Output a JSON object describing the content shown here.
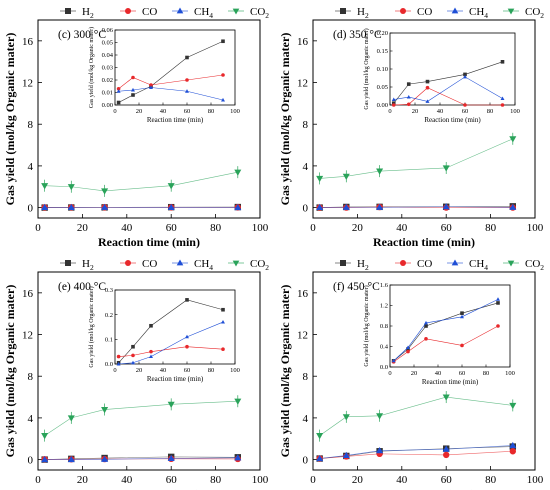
{
  "legend": {
    "entries": [
      {
        "key": "H2",
        "base": "H",
        "sub": "2",
        "color": "#333333",
        "marker": "square"
      },
      {
        "key": "CO",
        "base": "CO",
        "sub": "",
        "color": "#e8282b",
        "marker": "circle"
      },
      {
        "key": "CH4",
        "base": "CH",
        "sub": "4",
        "color": "#1f4fd6",
        "marker": "triangle-up"
      },
      {
        "key": "CO2",
        "base": "CO",
        "sub": "2",
        "color": "#2aa35a",
        "marker": "triangle-down"
      }
    ]
  },
  "chart_data": [
    {
      "type": "scatter",
      "panel_label": "(c) 300 °C",
      "xlabel": "Reaction time (min)",
      "ylabel": "Gas yield (mol/kg Organic mater)",
      "xlim": [
        0,
        100
      ],
      "ylim": [
        -1,
        18
      ],
      "xticks": [
        "0",
        "20",
        "40",
        "60",
        "80",
        "100"
      ],
      "yticks": [
        "0",
        "4",
        "8",
        "12",
        "16"
      ],
      "x": [
        3,
        15,
        30,
        60,
        90
      ],
      "series": [
        {
          "name": "H2",
          "values": [
            0.0,
            0.01,
            0.02,
            0.04,
            0.05
          ]
        },
        {
          "name": "CO",
          "values": [
            0.01,
            0.02,
            0.02,
            0.02,
            0.02
          ]
        },
        {
          "name": "CH4",
          "values": [
            0.01,
            0.01,
            0.02,
            0.01,
            0.0
          ]
        },
        {
          "name": "CO2",
          "values": [
            2.1,
            2.0,
            1.6,
            2.1,
            3.4
          ]
        }
      ],
      "inset": {
        "xlabel": "Reaction time (min)",
        "ylabel": "Gas yield (mol/kg Organic mater)",
        "xlim": [
          0,
          100
        ],
        "ylim": [
          0,
          0.06
        ],
        "xticks": [
          "0",
          "20",
          "40",
          "60",
          "80",
          "100"
        ],
        "yticks": [
          "0.00",
          "0.01",
          "0.02",
          "0.03",
          "0.04",
          "0.05",
          "0.06"
        ],
        "series": [
          {
            "name": "H2",
            "values": [
              0.002,
              0.008,
              0.015,
              0.038,
              0.051
            ]
          },
          {
            "name": "CO",
            "values": [
              0.013,
              0.022,
              0.016,
              0.02,
              0.024
            ]
          },
          {
            "name": "CH4",
            "values": [
              0.011,
              0.012,
              0.014,
              0.011,
              0.004
            ]
          }
        ]
      }
    },
    {
      "type": "scatter",
      "panel_label": "(d) 350 °C",
      "xlabel": "Reaction time (min)",
      "ylabel": "Gas yield (mol/kg Organic mater)",
      "xlim": [
        0,
        100
      ],
      "ylim": [
        -1,
        18
      ],
      "xticks": [
        "0",
        "20",
        "40",
        "60",
        "80",
        "100"
      ],
      "yticks": [
        "0",
        "4",
        "8",
        "12",
        "16"
      ],
      "x": [
        3,
        15,
        30,
        60,
        90
      ],
      "series": [
        {
          "name": "H2",
          "values": [
            0.0,
            0.06,
            0.07,
            0.08,
            0.12
          ]
        },
        {
          "name": "CO",
          "values": [
            0.0,
            0.0,
            0.05,
            0.0,
            0.0
          ]
        },
        {
          "name": "CH4",
          "values": [
            0.01,
            0.02,
            0.02,
            0.08,
            0.02
          ]
        },
        {
          "name": "CO2",
          "values": [
            2.8,
            3.0,
            3.5,
            3.8,
            6.6
          ]
        }
      ],
      "inset": {
        "xlabel": "Reaction time (min)",
        "ylabel": "Gas yield (mol/kg Organic mater)",
        "xlim": [
          0,
          100
        ],
        "ylim": [
          0,
          0.2
        ],
        "xticks": [
          "0",
          "20",
          "40",
          "60",
          "80",
          "100"
        ],
        "yticks": [
          "0.00",
          "0.05",
          "0.10",
          "0.15",
          "0.20"
        ],
        "series": [
          {
            "name": "H2",
            "values": [
              0.005,
              0.058,
              0.065,
              0.085,
              0.12
            ]
          },
          {
            "name": "CO",
            "values": [
              0.0,
              0.002,
              0.048,
              0.0,
              0.0
            ]
          },
          {
            "name": "CH4",
            "values": [
              0.015,
              0.022,
              0.01,
              0.078,
              0.018
            ]
          }
        ]
      }
    },
    {
      "type": "scatter",
      "panel_label": "(e) 400 °C",
      "xlabel": "Reaction time (min)",
      "ylabel": "Gas yield (mol/kg Organic mater)",
      "xlim": [
        0,
        100
      ],
      "ylim": [
        -1,
        18
      ],
      "xticks": [
        "0",
        "20",
        "40",
        "60",
        "80",
        "100"
      ],
      "yticks": [
        "0",
        "4",
        "8",
        "12",
        "16"
      ],
      "x": [
        3,
        15,
        30,
        60,
        90
      ],
      "series": [
        {
          "name": "H2",
          "values": [
            0.0,
            0.07,
            0.15,
            0.26,
            0.22
          ]
        },
        {
          "name": "CO",
          "values": [
            0.03,
            0.03,
            0.05,
            0.07,
            0.06
          ]
        },
        {
          "name": "CH4",
          "values": [
            0.0,
            0.0,
            0.03,
            0.11,
            0.17
          ]
        },
        {
          "name": "CO2",
          "values": [
            2.3,
            4.0,
            4.8,
            5.3,
            5.6
          ]
        }
      ],
      "inset": {
        "xlabel": "Reaction time (min)",
        "ylabel": "Gas yield (mol/kg Organic mater)",
        "xlim": [
          0,
          100
        ],
        "ylim": [
          0,
          0.3
        ],
        "xticks": [
          "0",
          "20",
          "40",
          "60",
          "80",
          "100"
        ],
        "yticks": [
          "0.0",
          "0.1",
          "0.2",
          "0.3"
        ],
        "series": [
          {
            "name": "H2",
            "values": [
              0.005,
              0.07,
              0.155,
              0.26,
              0.22
            ]
          },
          {
            "name": "CO",
            "values": [
              0.03,
              0.035,
              0.05,
              0.07,
              0.06
            ]
          },
          {
            "name": "CH4",
            "values": [
              0.0,
              0.005,
              0.03,
              0.11,
              0.17
            ]
          }
        ]
      }
    },
    {
      "type": "scatter",
      "panel_label": "(f) 450 °C",
      "xlabel": "Reaction time (min)",
      "ylabel": "Gas yield (mol/kg Organic mater)",
      "xlim": [
        0,
        100
      ],
      "ylim": [
        -1,
        18
      ],
      "xticks": [
        "0",
        "20",
        "40",
        "60",
        "80",
        "100"
      ],
      "yticks": [
        "0",
        "4",
        "8",
        "12",
        "16"
      ],
      "x": [
        3,
        15,
        30,
        60,
        90
      ],
      "series": [
        {
          "name": "H2",
          "values": [
            0.1,
            0.35,
            0.8,
            1.05,
            1.25
          ]
        },
        {
          "name": "CO",
          "values": [
            0.1,
            0.3,
            0.55,
            0.45,
            0.8
          ]
        },
        {
          "name": "CH4",
          "values": [
            0.1,
            0.4,
            0.85,
            1.0,
            1.35
          ]
        },
        {
          "name": "CO2",
          "values": [
            2.3,
            4.1,
            4.2,
            6.0,
            5.2
          ]
        }
      ],
      "inset": {
        "xlabel": "Reaction time (min)",
        "ylabel": "Gas yield (mol/kg Organic mater)",
        "xlim": [
          0,
          100
        ],
        "ylim": [
          0,
          1.6
        ],
        "xticks": [
          "0",
          "20",
          "40",
          "60",
          "80",
          "100"
        ],
        "yticks": [
          "0.0",
          "0.4",
          "0.8",
          "1.2",
          "1.6"
        ],
        "series": [
          {
            "name": "H2",
            "values": [
              0.12,
              0.35,
              0.8,
              1.05,
              1.25
            ]
          },
          {
            "name": "CO",
            "values": [
              0.1,
              0.3,
              0.55,
              0.42,
              0.8
            ]
          },
          {
            "name": "CH4",
            "values": [
              0.12,
              0.38,
              0.86,
              0.98,
              1.32
            ]
          }
        ]
      }
    }
  ]
}
